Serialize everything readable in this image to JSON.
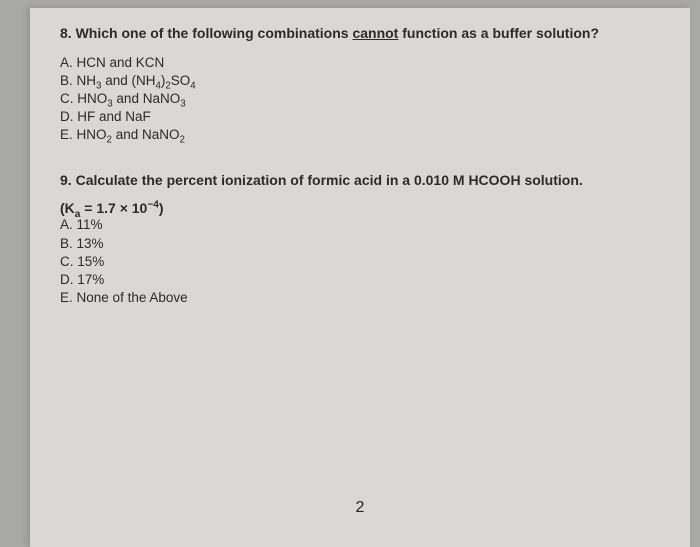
{
  "page_number": "2",
  "background_color": "#a8a8a6",
  "paper_color": "#d9d8d4",
  "text_color": "#2b2b2b",
  "font_family": "Arial",
  "q8": {
    "number": "8.",
    "prompt_pre": "Which one of the following combinations ",
    "prompt_underline": "cannot",
    "prompt_post": " function as a buffer solution?",
    "options": {
      "A": {
        "letter": "A.",
        "text": "HCN and KCN"
      },
      "B": {
        "letter": "B.",
        "text_html": "NH₃ and (NH₄)₂SO₄"
      },
      "C": {
        "letter": "C.",
        "text_html": "HNO₃ and NaNO₃"
      },
      "D": {
        "letter": "D.",
        "text": "HF and NaF"
      },
      "E": {
        "letter": "E.",
        "text_html": "HNO₂ and NaNO₂"
      }
    }
  },
  "q9": {
    "number": "9.",
    "prompt": "Calculate the percent ionization of formic acid in a 0.010 M HCOOH solution.",
    "ka_line_pre": "(K",
    "ka_sub": "a",
    "ka_eq": " = 1.7 × 10",
    "ka_exp": "−4",
    "ka_close": ")",
    "options": {
      "A": {
        "letter": "A.",
        "text": "11%"
      },
      "B": {
        "letter": "B.",
        "text": "13%"
      },
      "C": {
        "letter": "C.",
        "text": "15%"
      },
      "D": {
        "letter": "D.",
        "text": "17%"
      },
      "E": {
        "letter": "E.",
        "text": "None of the Above"
      }
    }
  }
}
